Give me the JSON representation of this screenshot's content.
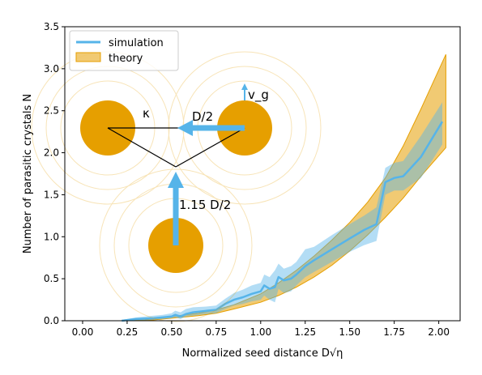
{
  "chart_data": {
    "type": "line",
    "xlabel": "Normalized seed distance D√η",
    "ylabel": "Number of parasitic crystals N",
    "xlim": [
      -0.1,
      2.12
    ],
    "ylim": [
      0,
      3.5
    ],
    "x_ticks": [
      "0.00",
      "0.25",
      "0.50",
      "0.75",
      "1.00",
      "1.25",
      "1.50",
      "1.75",
      "2.00"
    ],
    "y_ticks": [
      "0.0",
      "0.5",
      "1.0",
      "1.5",
      "2.0",
      "2.5",
      "3.0",
      "3.5"
    ],
    "grid": false,
    "legend_position": "top-left",
    "colors": {
      "simulation": "#56b4e9",
      "theory": "#e69f00"
    },
    "series": [
      {
        "name": "simulation",
        "x": [
          0.22,
          0.3,
          0.4,
          0.45,
          0.5,
          0.52,
          0.55,
          0.58,
          0.62,
          0.7,
          0.75,
          0.8,
          0.85,
          0.9,
          0.95,
          1.0,
          1.02,
          1.05,
          1.08,
          1.1,
          1.13,
          1.17,
          1.2,
          1.25,
          1.3,
          1.4,
          1.5,
          1.58,
          1.65,
          1.7,
          1.75,
          1.8,
          1.9,
          2.02
        ],
        "values": [
          0.0,
          0.02,
          0.03,
          0.04,
          0.05,
          0.07,
          0.05,
          0.08,
          0.1,
          0.12,
          0.13,
          0.2,
          0.25,
          0.28,
          0.32,
          0.35,
          0.42,
          0.38,
          0.4,
          0.52,
          0.48,
          0.5,
          0.55,
          0.65,
          0.72,
          0.85,
          0.98,
          1.08,
          1.15,
          1.65,
          1.7,
          1.72,
          1.95,
          2.37
        ],
        "lower": [
          0.0,
          0.0,
          0.01,
          0.02,
          0.03,
          0.04,
          0.02,
          0.05,
          0.06,
          0.08,
          0.09,
          0.14,
          0.18,
          0.2,
          0.23,
          0.25,
          0.3,
          0.25,
          0.22,
          0.38,
          0.33,
          0.35,
          0.42,
          0.52,
          0.58,
          0.7,
          0.82,
          0.9,
          0.95,
          1.5,
          1.55,
          1.55,
          1.7,
          2.1
        ],
        "upper": [
          0.01,
          0.04,
          0.06,
          0.07,
          0.09,
          0.12,
          0.1,
          0.14,
          0.16,
          0.17,
          0.18,
          0.26,
          0.33,
          0.37,
          0.42,
          0.45,
          0.55,
          0.52,
          0.6,
          0.68,
          0.62,
          0.65,
          0.7,
          0.85,
          0.88,
          1.02,
          1.15,
          1.25,
          1.35,
          1.82,
          1.88,
          1.9,
          2.2,
          2.6
        ]
      },
      {
        "name": "theory",
        "x": [
          0.22,
          0.35,
          0.5,
          0.65,
          0.75,
          0.85,
          1.0,
          1.1,
          1.2,
          1.3,
          1.4,
          1.5,
          1.6,
          1.7,
          1.8,
          1.9,
          2.04
        ],
        "lower": [
          0.0,
          0.0,
          0.03,
          0.06,
          0.09,
          0.14,
          0.22,
          0.3,
          0.4,
          0.52,
          0.66,
          0.83,
          1.02,
          1.23,
          1.46,
          1.72,
          2.06
        ],
        "upper": [
          0.0,
          0.01,
          0.05,
          0.09,
          0.13,
          0.19,
          0.32,
          0.45,
          0.6,
          0.77,
          0.96,
          1.17,
          1.41,
          1.7,
          2.08,
          2.52,
          3.17
        ]
      }
    ],
    "inset_labels": {
      "kappa": "κ",
      "half_distance": "D/2",
      "velocity": "v_g",
      "height": "1.15 D/2"
    }
  }
}
